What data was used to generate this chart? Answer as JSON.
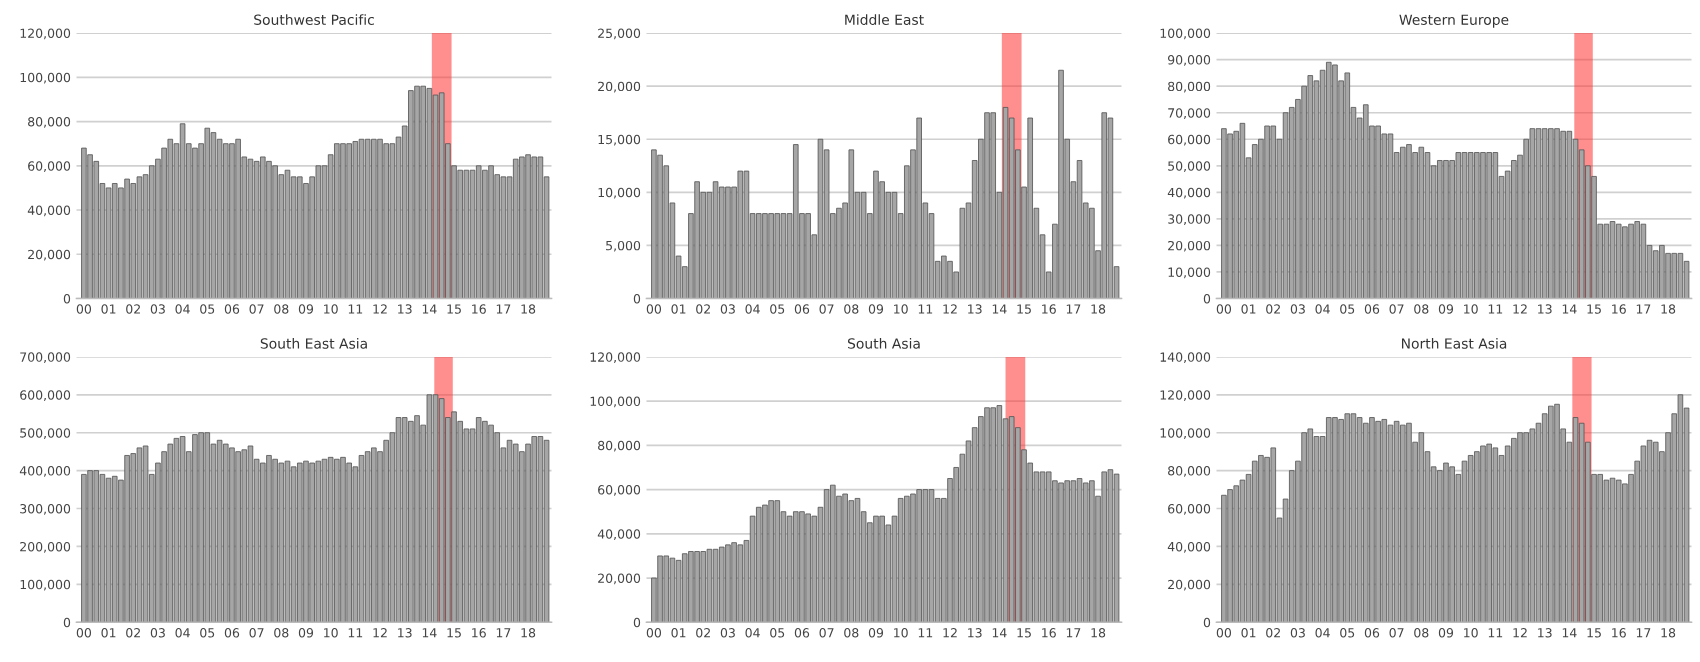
{
  "chart_data": [
    {
      "type": "bar",
      "title": "Southwest Pacific",
      "x": [
        0,
        0.25,
        0.5,
        0.75,
        1,
        1.25,
        1.5,
        1.75,
        2,
        2.25,
        2.5,
        2.75,
        3,
        3.25,
        3.5,
        3.75,
        4,
        4.25,
        4.5,
        4.75,
        5,
        5.25,
        5.5,
        5.75,
        6,
        6.25,
        6.5,
        6.75,
        7,
        7.25,
        7.5,
        7.75,
        8,
        8.25,
        8.5,
        8.75,
        9,
        9.25,
        9.5,
        9.75,
        10,
        10.25,
        10.5,
        10.75,
        11,
        11.25,
        11.5,
        11.75,
        12,
        12.25,
        12.5,
        12.75,
        13,
        13.25,
        13.5,
        13.75,
        14,
        14.25,
        14.5,
        14.75,
        15,
        15.25,
        15.5,
        15.75,
        16,
        16.25,
        16.5,
        16.75,
        17,
        17.25,
        17.5,
        17.75,
        18,
        18.25,
        18.5,
        18.75
      ],
      "series": [
        {
          "color": "#a6a6a6",
          "values": [
            68000,
            65000,
            62000,
            52000,
            50000,
            52000,
            50000,
            54000,
            52000,
            55000,
            56000,
            60000,
            63000,
            68000,
            72000,
            70000,
            79000,
            70000,
            68000,
            70000,
            77000,
            75000,
            72000,
            70000,
            70000,
            72000,
            64000,
            63000,
            62000,
            64000,
            62000,
            60000,
            56000,
            58000,
            55000,
            55000,
            52000,
            55000,
            60000,
            60000,
            65000,
            70000,
            70000,
            70000,
            71000,
            72000,
            72000,
            72000,
            72000,
            70000,
            70000,
            73000,
            78000,
            94000,
            96000,
            96000,
            95000,
            92000,
            93000,
            70000,
            60000,
            58000,
            58000,
            58000,
            60000,
            58000,
            60000,
            56000,
            55000,
            55000,
            63000,
            64000,
            65000,
            64000,
            64000,
            55000
          ]
        }
      ],
      "xlim": [
        -0.3,
        18.95
      ],
      "xticks": [
        {
          "value": 0,
          "label": "00"
        },
        {
          "value": 1,
          "label": "01"
        },
        {
          "value": 2,
          "label": "02"
        },
        {
          "value": 3,
          "label": "03"
        },
        {
          "value": 4,
          "label": "04"
        },
        {
          "value": 5,
          "label": "05"
        },
        {
          "value": 6,
          "label": "06"
        },
        {
          "value": 7,
          "label": "07"
        },
        {
          "value": 8,
          "label": "08"
        },
        {
          "value": 9,
          "label": "09"
        },
        {
          "value": 10,
          "label": "10"
        },
        {
          "value": 11,
          "label": "11"
        },
        {
          "value": 12,
          "label": "12"
        },
        {
          "value": 13,
          "label": "13"
        },
        {
          "value": 14,
          "label": "14"
        },
        {
          "value": 15,
          "label": "15"
        },
        {
          "value": 16,
          "label": "16"
        },
        {
          "value": 17,
          "label": "17"
        },
        {
          "value": 18,
          "label": "18"
        }
      ],
      "ylim": [
        0,
        120000
      ],
      "yticks": [
        {
          "value": 0,
          "label": "0"
        },
        {
          "value": 20000,
          "label": "20,000"
        },
        {
          "value": 40000,
          "label": "40,000"
        },
        {
          "value": 60000,
          "label": "60,000"
        },
        {
          "value": 80000,
          "label": "80,000"
        },
        {
          "value": 100000,
          "label": "100,000"
        },
        {
          "value": 120000,
          "label": "120,000"
        }
      ],
      "grid": "y",
      "bands": [
        {
          "axis": "x",
          "from": 14.1,
          "to": 14.9,
          "color": "#ff3333"
        }
      ]
    },
    {
      "type": "bar",
      "title": "Middle East",
      "x": [
        0,
        0.25,
        0.5,
        0.75,
        1,
        1.25,
        1.5,
        1.75,
        2,
        2.25,
        2.5,
        2.75,
        3,
        3.25,
        3.5,
        3.75,
        4,
        4.25,
        4.5,
        4.75,
        5,
        5.25,
        5.5,
        5.75,
        6,
        6.25,
        6.5,
        6.75,
        7,
        7.25,
        7.5,
        7.75,
        8,
        8.25,
        8.5,
        8.75,
        9,
        9.25,
        9.5,
        9.75,
        10,
        10.25,
        10.5,
        10.75,
        11,
        11.25,
        11.5,
        11.75,
        12,
        12.25,
        12.5,
        12.75,
        13,
        13.25,
        13.5,
        13.75,
        14,
        14.25,
        14.5,
        14.75,
        15,
        15.25,
        15.5,
        15.75,
        16,
        16.25,
        16.5,
        16.75,
        17,
        17.25,
        17.5,
        17.75,
        18,
        18.25,
        18.5,
        18.75
      ],
      "series": [
        {
          "color": "#a6a6a6",
          "values": [
            14000,
            13500,
            12500,
            9000,
            4000,
            3000,
            8000,
            11000,
            10000,
            10000,
            11000,
            10500,
            10500,
            10500,
            12000,
            12000,
            8000,
            8000,
            8000,
            8000,
            8000,
            8000,
            8000,
            14500,
            8000,
            8000,
            6000,
            15000,
            14000,
            8000,
            8500,
            9000,
            14000,
            10000,
            10000,
            8000,
            12000,
            11000,
            10000,
            10000,
            8000,
            12500,
            14000,
            17000,
            9000,
            8000,
            3500,
            4000,
            3500,
            2500,
            8500,
            9000,
            13000,
            15000,
            17500,
            17500,
            10000,
            18000,
            17000,
            14000,
            10500,
            17000,
            8500,
            6000,
            2500,
            7000,
            21500,
            15000,
            11000,
            13000,
            9000,
            8500,
            4500,
            17500,
            17000,
            3000
          ]
        }
      ],
      "xlim": [
        -0.3,
        18.95
      ],
      "xticks": [
        {
          "value": 0,
          "label": "00"
        },
        {
          "value": 1,
          "label": "01"
        },
        {
          "value": 2,
          "label": "02"
        },
        {
          "value": 3,
          "label": "03"
        },
        {
          "value": 4,
          "label": "04"
        },
        {
          "value": 5,
          "label": "05"
        },
        {
          "value": 6,
          "label": "06"
        },
        {
          "value": 7,
          "label": "07"
        },
        {
          "value": 8,
          "label": "08"
        },
        {
          "value": 9,
          "label": "09"
        },
        {
          "value": 10,
          "label": "10"
        },
        {
          "value": 11,
          "label": "11"
        },
        {
          "value": 12,
          "label": "12"
        },
        {
          "value": 13,
          "label": "13"
        },
        {
          "value": 14,
          "label": "14"
        },
        {
          "value": 15,
          "label": "15"
        },
        {
          "value": 16,
          "label": "16"
        },
        {
          "value": 17,
          "label": "17"
        },
        {
          "value": 18,
          "label": "18"
        }
      ],
      "ylim": [
        0,
        25000
      ],
      "yticks": [
        {
          "value": 0,
          "label": "0"
        },
        {
          "value": 5000,
          "label": "5,000"
        },
        {
          "value": 10000,
          "label": "10,000"
        },
        {
          "value": 15000,
          "label": "15,000"
        },
        {
          "value": 20000,
          "label": "20,000"
        },
        {
          "value": 25000,
          "label": "25,000"
        }
      ],
      "grid": "y",
      "bands": [
        {
          "axis": "x",
          "from": 14.1,
          "to": 14.9,
          "color": "#ff3333"
        }
      ]
    },
    {
      "type": "bar",
      "title": "Western Europe",
      "x": [
        0,
        0.25,
        0.5,
        0.75,
        1,
        1.25,
        1.5,
        1.75,
        2,
        2.25,
        2.5,
        2.75,
        3,
        3.25,
        3.5,
        3.75,
        4,
        4.25,
        4.5,
        4.75,
        5,
        5.25,
        5.5,
        5.75,
        6,
        6.25,
        6.5,
        6.75,
        7,
        7.25,
        7.5,
        7.75,
        8,
        8.25,
        8.5,
        8.75,
        9,
        9.25,
        9.5,
        9.75,
        10,
        10.25,
        10.5,
        10.75,
        11,
        11.25,
        11.5,
        11.75,
        12,
        12.25,
        12.5,
        12.75,
        13,
        13.25,
        13.5,
        13.75,
        14,
        14.25,
        14.5,
        14.75,
        15,
        15.25,
        15.5,
        15.75,
        16,
        16.25,
        16.5,
        16.75,
        17,
        17.25,
        17.5,
        17.75,
        18,
        18.25,
        18.5,
        18.75
      ],
      "series": [
        {
          "color": "#a6a6a6",
          "values": [
            64000,
            62000,
            63000,
            66000,
            53000,
            58000,
            60000,
            65000,
            65000,
            60000,
            70000,
            72000,
            75000,
            80000,
            84000,
            82000,
            86000,
            89000,
            88000,
            82000,
            85000,
            72000,
            68000,
            73000,
            65000,
            65000,
            62000,
            62000,
            55000,
            57000,
            58000,
            55000,
            57000,
            55000,
            50000,
            52000,
            52000,
            52000,
            55000,
            55000,
            55000,
            55000,
            55000,
            55000,
            55000,
            46000,
            48000,
            52000,
            54000,
            60000,
            64000,
            64000,
            64000,
            64000,
            64000,
            63000,
            63000,
            60000,
            56000,
            50000,
            46000,
            28000,
            28000,
            29000,
            28000,
            27000,
            28000,
            29000,
            28000,
            20000,
            18000,
            20000,
            17000,
            17000,
            17000,
            14000
          ]
        }
      ],
      "xlim": [
        -0.3,
        18.95
      ],
      "xticks": [
        {
          "value": 0,
          "label": "00"
        },
        {
          "value": 1,
          "label": "01"
        },
        {
          "value": 2,
          "label": "02"
        },
        {
          "value": 3,
          "label": "03"
        },
        {
          "value": 4,
          "label": "04"
        },
        {
          "value": 5,
          "label": "05"
        },
        {
          "value": 6,
          "label": "06"
        },
        {
          "value": 7,
          "label": "07"
        },
        {
          "value": 8,
          "label": "08"
        },
        {
          "value": 9,
          "label": "09"
        },
        {
          "value": 10,
          "label": "10"
        },
        {
          "value": 11,
          "label": "11"
        },
        {
          "value": 12,
          "label": "12"
        },
        {
          "value": 13,
          "label": "13"
        },
        {
          "value": 14,
          "label": "14"
        },
        {
          "value": 15,
          "label": "15"
        },
        {
          "value": 16,
          "label": "16"
        },
        {
          "value": 17,
          "label": "17"
        },
        {
          "value": 18,
          "label": "18"
        }
      ],
      "ylim": [
        0,
        100000
      ],
      "yticks": [
        {
          "value": 0,
          "label": "0"
        },
        {
          "value": 10000,
          "label": "10,000"
        },
        {
          "value": 20000,
          "label": "20,000"
        },
        {
          "value": 30000,
          "label": "30,000"
        },
        {
          "value": 40000,
          "label": "40,000"
        },
        {
          "value": 50000,
          "label": "50,000"
        },
        {
          "value": 60000,
          "label": "60,000"
        },
        {
          "value": 70000,
          "label": "70,000"
        },
        {
          "value": 80000,
          "label": "80,000"
        },
        {
          "value": 90000,
          "label": "90,000"
        },
        {
          "value": 100000,
          "label": "100,000"
        }
      ],
      "grid": "y",
      "bands": [
        {
          "axis": "x",
          "from": 14.2,
          "to": 14.95,
          "color": "#ff3333"
        }
      ]
    },
    {
      "type": "bar",
      "title": "South East Asia",
      "x": [
        0,
        0.25,
        0.5,
        0.75,
        1,
        1.25,
        1.5,
        1.75,
        2,
        2.25,
        2.5,
        2.75,
        3,
        3.25,
        3.5,
        3.75,
        4,
        4.25,
        4.5,
        4.75,
        5,
        5.25,
        5.5,
        5.75,
        6,
        6.25,
        6.5,
        6.75,
        7,
        7.25,
        7.5,
        7.75,
        8,
        8.25,
        8.5,
        8.75,
        9,
        9.25,
        9.5,
        9.75,
        10,
        10.25,
        10.5,
        10.75,
        11,
        11.25,
        11.5,
        11.75,
        12,
        12.25,
        12.5,
        12.75,
        13,
        13.25,
        13.5,
        13.75,
        14,
        14.25,
        14.5,
        14.75,
        15,
        15.25,
        15.5,
        15.75,
        16,
        16.25,
        16.5,
        16.75,
        17,
        17.25,
        17.5,
        17.75,
        18,
        18.25,
        18.5,
        18.75
      ],
      "series": [
        {
          "color": "#a6a6a6",
          "values": [
            390000,
            400000,
            400000,
            390000,
            380000,
            385000,
            375000,
            440000,
            445000,
            460000,
            465000,
            390000,
            420000,
            450000,
            470000,
            485000,
            490000,
            450000,
            495000,
            500000,
            500000,
            470000,
            480000,
            470000,
            460000,
            450000,
            455000,
            465000,
            430000,
            420000,
            440000,
            430000,
            420000,
            425000,
            410000,
            420000,
            425000,
            420000,
            425000,
            430000,
            435000,
            430000,
            435000,
            420000,
            410000,
            440000,
            450000,
            460000,
            450000,
            480000,
            500000,
            540000,
            540000,
            530000,
            545000,
            520000,
            600000,
            600000,
            590000,
            540000,
            555000,
            530000,
            510000,
            510000,
            540000,
            530000,
            520000,
            500000,
            460000,
            480000,
            470000,
            450000,
            470000,
            490000,
            490000,
            480000
          ]
        }
      ],
      "xlim": [
        -0.3,
        18.95
      ],
      "xticks": [
        {
          "value": 0,
          "label": "00"
        },
        {
          "value": 1,
          "label": "01"
        },
        {
          "value": 2,
          "label": "02"
        },
        {
          "value": 3,
          "label": "03"
        },
        {
          "value": 4,
          "label": "04"
        },
        {
          "value": 5,
          "label": "05"
        },
        {
          "value": 6,
          "label": "06"
        },
        {
          "value": 7,
          "label": "07"
        },
        {
          "value": 8,
          "label": "08"
        },
        {
          "value": 9,
          "label": "09"
        },
        {
          "value": 10,
          "label": "10"
        },
        {
          "value": 11,
          "label": "11"
        },
        {
          "value": 12,
          "label": "12"
        },
        {
          "value": 13,
          "label": "13"
        },
        {
          "value": 14,
          "label": "14"
        },
        {
          "value": 15,
          "label": "15"
        },
        {
          "value": 16,
          "label": "16"
        },
        {
          "value": 17,
          "label": "17"
        },
        {
          "value": 18,
          "label": "18"
        }
      ],
      "ylim": [
        0,
        700000
      ],
      "yticks": [
        {
          "value": 0,
          "label": "0"
        },
        {
          "value": 100000,
          "label": "100,000"
        },
        {
          "value": 200000,
          "label": "200,000"
        },
        {
          "value": 300000,
          "label": "300,000"
        },
        {
          "value": 400000,
          "label": "400,000"
        },
        {
          "value": 500000,
          "label": "500,000"
        },
        {
          "value": 600000,
          "label": "600,000"
        },
        {
          "value": 700000,
          "label": "700,000"
        }
      ],
      "grid": "y",
      "bands": [
        {
          "axis": "x",
          "from": 14.2,
          "to": 14.95,
          "color": "#ff3333"
        }
      ]
    },
    {
      "type": "bar",
      "title": "South Asia",
      "x": [
        0,
        0.25,
        0.5,
        0.75,
        1,
        1.25,
        1.5,
        1.75,
        2,
        2.25,
        2.5,
        2.75,
        3,
        3.25,
        3.5,
        3.75,
        4,
        4.25,
        4.5,
        4.75,
        5,
        5.25,
        5.5,
        5.75,
        6,
        6.25,
        6.5,
        6.75,
        7,
        7.25,
        7.5,
        7.75,
        8,
        8.25,
        8.5,
        8.75,
        9,
        9.25,
        9.5,
        9.75,
        10,
        10.25,
        10.5,
        10.75,
        11,
        11.25,
        11.5,
        11.75,
        12,
        12.25,
        12.5,
        12.75,
        13,
        13.25,
        13.5,
        13.75,
        14,
        14.25,
        14.5,
        14.75,
        15,
        15.25,
        15.5,
        15.75,
        16,
        16.25,
        16.5,
        16.75,
        17,
        17.25,
        17.5,
        17.75,
        18,
        18.25,
        18.5,
        18.75
      ],
      "series": [
        {
          "color": "#a6a6a6",
          "values": [
            20000,
            30000,
            30000,
            29000,
            28000,
            31000,
            32000,
            32000,
            32000,
            33000,
            33000,
            34000,
            35000,
            36000,
            35000,
            37000,
            48000,
            52000,
            53000,
            55000,
            55000,
            50000,
            48000,
            50000,
            50000,
            49000,
            48000,
            52000,
            60000,
            62000,
            57000,
            58000,
            55000,
            56000,
            50000,
            45000,
            48000,
            48000,
            44000,
            48000,
            56000,
            57000,
            58000,
            60000,
            60000,
            60000,
            56000,
            56000,
            65000,
            70000,
            76000,
            82000,
            88000,
            93000,
            97000,
            97000,
            98000,
            92000,
            93000,
            88000,
            78000,
            72000,
            68000,
            68000,
            68000,
            64000,
            63000,
            64000,
            64000,
            65000,
            63000,
            64000,
            57000,
            68000,
            69000,
            67000
          ]
        }
      ],
      "xlim": [
        -0.3,
        18.95
      ],
      "xticks": [
        {
          "value": 0,
          "label": "00"
        },
        {
          "value": 1,
          "label": "01"
        },
        {
          "value": 2,
          "label": "02"
        },
        {
          "value": 3,
          "label": "03"
        },
        {
          "value": 4,
          "label": "04"
        },
        {
          "value": 5,
          "label": "05"
        },
        {
          "value": 6,
          "label": "06"
        },
        {
          "value": 7,
          "label": "07"
        },
        {
          "value": 8,
          "label": "08"
        },
        {
          "value": 9,
          "label": "09"
        },
        {
          "value": 10,
          "label": "10"
        },
        {
          "value": 11,
          "label": "11"
        },
        {
          "value": 12,
          "label": "12"
        },
        {
          "value": 13,
          "label": "13"
        },
        {
          "value": 14,
          "label": "14"
        },
        {
          "value": 15,
          "label": "15"
        },
        {
          "value": 16,
          "label": "16"
        },
        {
          "value": 17,
          "label": "17"
        },
        {
          "value": 18,
          "label": "18"
        }
      ],
      "ylim": [
        0,
        120000
      ],
      "yticks": [
        {
          "value": 0,
          "label": "0"
        },
        {
          "value": 20000,
          "label": "20,000"
        },
        {
          "value": 40000,
          "label": "40,000"
        },
        {
          "value": 60000,
          "label": "60,000"
        },
        {
          "value": 80000,
          "label": "80,000"
        },
        {
          "value": 100000,
          "label": "100,000"
        },
        {
          "value": 120000,
          "label": "120,000"
        }
      ],
      "grid": "y",
      "bands": [
        {
          "axis": "x",
          "from": 14.25,
          "to": 15.05,
          "color": "#ff3333"
        }
      ]
    },
    {
      "type": "bar",
      "title": "North East Asia",
      "x": [
        0,
        0.25,
        0.5,
        0.75,
        1,
        1.25,
        1.5,
        1.75,
        2,
        2.25,
        2.5,
        2.75,
        3,
        3.25,
        3.5,
        3.75,
        4,
        4.25,
        4.5,
        4.75,
        5,
        5.25,
        5.5,
        5.75,
        6,
        6.25,
        6.5,
        6.75,
        7,
        7.25,
        7.5,
        7.75,
        8,
        8.25,
        8.5,
        8.75,
        9,
        9.25,
        9.5,
        9.75,
        10,
        10.25,
        10.5,
        10.75,
        11,
        11.25,
        11.5,
        11.75,
        12,
        12.25,
        12.5,
        12.75,
        13,
        13.25,
        13.5,
        13.75,
        14,
        14.25,
        14.5,
        14.75,
        15,
        15.25,
        15.5,
        15.75,
        16,
        16.25,
        16.5,
        16.75,
        17,
        17.25,
        17.5,
        17.75,
        18,
        18.25,
        18.5,
        18.75
      ],
      "series": [
        {
          "color": "#a6a6a6",
          "values": [
            67000,
            70000,
            72000,
            75000,
            78000,
            85000,
            88000,
            87000,
            92000,
            55000,
            65000,
            80000,
            85000,
            100000,
            102000,
            98000,
            98000,
            108000,
            108000,
            107000,
            110000,
            110000,
            108000,
            105000,
            108000,
            106000,
            107000,
            104000,
            106000,
            104000,
            105000,
            95000,
            100000,
            90000,
            82000,
            80000,
            84000,
            82000,
            78000,
            85000,
            88000,
            90000,
            93000,
            94000,
            92000,
            88000,
            93000,
            97000,
            100000,
            100000,
            102000,
            105000,
            110000,
            114000,
            115000,
            102000,
            95000,
            108000,
            105000,
            95000,
            78000,
            78000,
            75000,
            76000,
            75000,
            73000,
            78000,
            85000,
            93000,
            96000,
            95000,
            90000,
            100000,
            110000,
            120000,
            113000
          ]
        }
      ],
      "xlim": [
        -0.3,
        18.95
      ],
      "xticks": [
        {
          "value": 0,
          "label": "00"
        },
        {
          "value": 1,
          "label": "01"
        },
        {
          "value": 2,
          "label": "02"
        },
        {
          "value": 3,
          "label": "03"
        },
        {
          "value": 4,
          "label": "04"
        },
        {
          "value": 5,
          "label": "05"
        },
        {
          "value": 6,
          "label": "06"
        },
        {
          "value": 7,
          "label": "07"
        },
        {
          "value": 8,
          "label": "08"
        },
        {
          "value": 9,
          "label": "09"
        },
        {
          "value": 10,
          "label": "10"
        },
        {
          "value": 11,
          "label": "11"
        },
        {
          "value": 12,
          "label": "12"
        },
        {
          "value": 13,
          "label": "13"
        },
        {
          "value": 14,
          "label": "14"
        },
        {
          "value": 15,
          "label": "15"
        },
        {
          "value": 16,
          "label": "16"
        },
        {
          "value": 17,
          "label": "17"
        },
        {
          "value": 18,
          "label": "18"
        }
      ],
      "ylim": [
        0,
        140000
      ],
      "yticks": [
        {
          "value": 0,
          "label": "0"
        },
        {
          "value": 20000,
          "label": "20,000"
        },
        {
          "value": 40000,
          "label": "40,000"
        },
        {
          "value": 60000,
          "label": "60,000"
        },
        {
          "value": 80000,
          "label": "80,000"
        },
        {
          "value": 100000,
          "label": "100,000"
        },
        {
          "value": 120000,
          "label": "120,000"
        },
        {
          "value": 140000,
          "label": "140,000"
        }
      ],
      "grid": "y",
      "bands": [
        {
          "axis": "x",
          "from": 14.12,
          "to": 14.9,
          "color": "#ff3333"
        }
      ]
    }
  ]
}
